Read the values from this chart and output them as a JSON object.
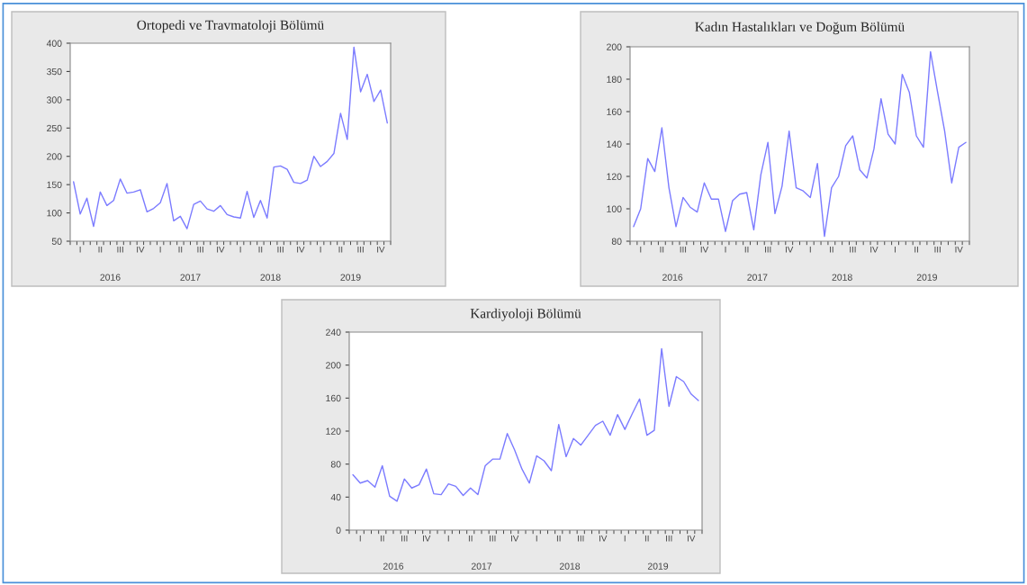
{
  "chart_data": [
    {
      "type": "line",
      "title": "Ortopedi ve Travmatoloji Bölümü",
      "categories": [
        null,
        "I",
        null,
        null,
        "II",
        null,
        null,
        "III",
        null,
        null,
        "IV",
        null,
        null,
        "I",
        null,
        null,
        "II",
        null,
        null,
        "III",
        null,
        null,
        "IV",
        null,
        null,
        "I",
        null,
        null,
        "II",
        null,
        null,
        "III",
        null,
        null,
        "IV",
        null,
        null,
        "I",
        null,
        null,
        "II",
        null,
        null,
        "III",
        null,
        null,
        "IV",
        null
      ],
      "series": [
        {
          "color": "#7b7bff",
          "values": [
            155,
            98,
            126,
            76,
            137,
            113,
            122,
            160,
            135,
            137,
            141,
            102,
            108,
            118,
            152,
            86,
            94,
            72,
            115,
            121,
            107,
            103,
            113,
            97,
            93,
            91,
            138,
            92,
            122,
            91,
            181,
            183,
            177,
            154,
            152,
            158,
            200,
            182,
            191,
            205,
            276,
            230,
            393,
            314,
            345,
            297,
            317,
            259
          ]
        }
      ],
      "ylim": [
        50,
        400
      ],
      "yticks": [
        50,
        100,
        150,
        200,
        250,
        300,
        350,
        400
      ],
      "grid": false,
      "annotations": [
        "2016",
        "2017",
        "2018",
        "2019"
      ]
    },
    {
      "type": "line",
      "title": "Kadın Hastalıkları ve Doğum Bölümü",
      "categories": [
        null,
        "I",
        null,
        null,
        "II",
        null,
        null,
        "III",
        null,
        null,
        "IV",
        null,
        null,
        "I",
        null,
        null,
        "II",
        null,
        null,
        "III",
        null,
        null,
        "IV",
        null,
        null,
        "I",
        null,
        null,
        "II",
        null,
        null,
        "III",
        null,
        null,
        "IV",
        null,
        null,
        "I",
        null,
        null,
        "II",
        null,
        null,
        "III",
        null,
        null,
        "IV",
        null
      ],
      "series": [
        {
          "color": "#7b7bff",
          "values": [
            89,
            100,
            131,
            123,
            150,
            113,
            89,
            107,
            101,
            98,
            116,
            106,
            106,
            86,
            105,
            109,
            110,
            87,
            121,
            141,
            97,
            114,
            148,
            113,
            111,
            107,
            128,
            83,
            113,
            120,
            139,
            145,
            124,
            119,
            137,
            168,
            146,
            140,
            183,
            172,
            145,
            138,
            197,
            172,
            148,
            116,
            138,
            141
          ]
        }
      ],
      "ylim": [
        80,
        200
      ],
      "yticks": [
        80,
        100,
        120,
        140,
        160,
        180,
        200
      ],
      "grid": false,
      "annotations": [
        "2016",
        "2017",
        "2018",
        "2019"
      ]
    },
    {
      "type": "line",
      "title": "Kardiyoloji Bölümü",
      "categories": [
        null,
        "I",
        null,
        null,
        "II",
        null,
        null,
        "III",
        null,
        null,
        "IV",
        null,
        null,
        "I",
        null,
        null,
        "II",
        null,
        null,
        "III",
        null,
        null,
        "IV",
        null,
        null,
        "I",
        null,
        null,
        "II",
        null,
        null,
        "III",
        null,
        null,
        "IV",
        null,
        null,
        "I",
        null,
        null,
        "II",
        null,
        null,
        "III",
        null,
        null,
        "IV",
        null
      ],
      "series": [
        {
          "color": "#7b7bff",
          "values": [
            67,
            57,
            60,
            52,
            78,
            41,
            35,
            62,
            51,
            55,
            74,
            44,
            43,
            56,
            53,
            42,
            51,
            43,
            78,
            86,
            86,
            117,
            97,
            74,
            57,
            90,
            84,
            72,
            128,
            89,
            111,
            103,
            115,
            127,
            132,
            115,
            140,
            122,
            141,
            159,
            115,
            121,
            220,
            150,
            186,
            180,
            165,
            157
          ]
        }
      ],
      "ylim": [
        0,
        240
      ],
      "yticks": [
        0,
        40,
        80,
        120,
        160,
        200,
        240
      ],
      "grid": false,
      "annotations": [
        "2016",
        "2017",
        "2018",
        "2019"
      ]
    }
  ]
}
